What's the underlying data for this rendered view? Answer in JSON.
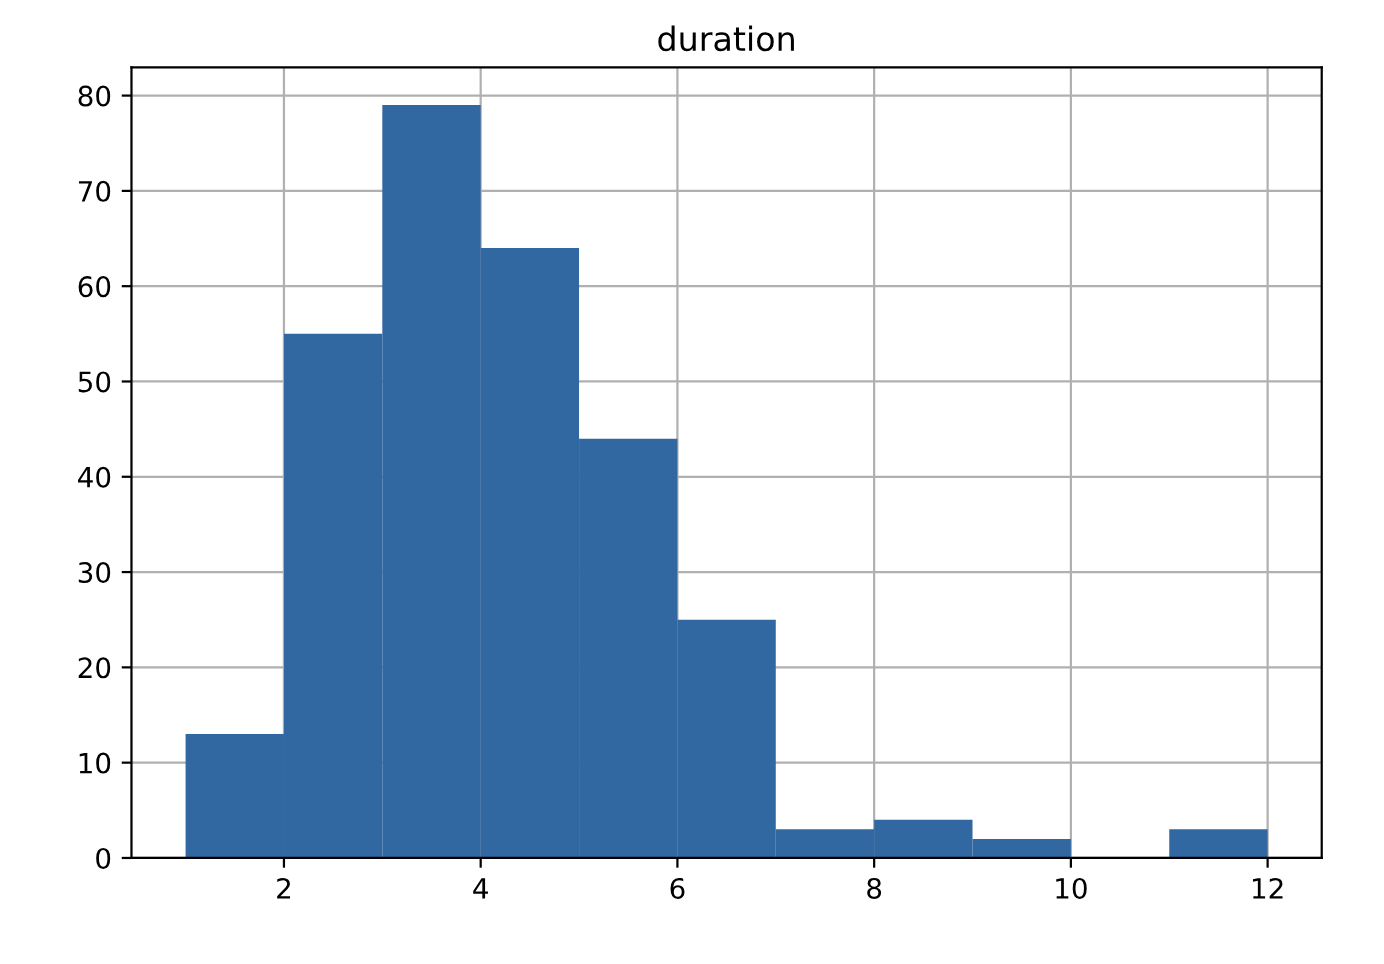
{
  "chart_data": {
    "type": "histogram",
    "title": "duration",
    "bins": [
      1,
      2,
      3,
      4,
      5,
      6,
      7,
      8,
      9,
      10,
      11,
      12
    ],
    "values": [
      13,
      55,
      79,
      64,
      44,
      25,
      3,
      4,
      2,
      0,
      3
    ],
    "color": "#3268a2",
    "xlim": [
      0.45,
      12.55
    ],
    "xticks": [
      2,
      4,
      6,
      8,
      10,
      12
    ],
    "ylim": [
      0,
      82.95
    ],
    "yticks": [
      0,
      10,
      20,
      30,
      40,
      50,
      60,
      70,
      80
    ],
    "grid": true
  }
}
